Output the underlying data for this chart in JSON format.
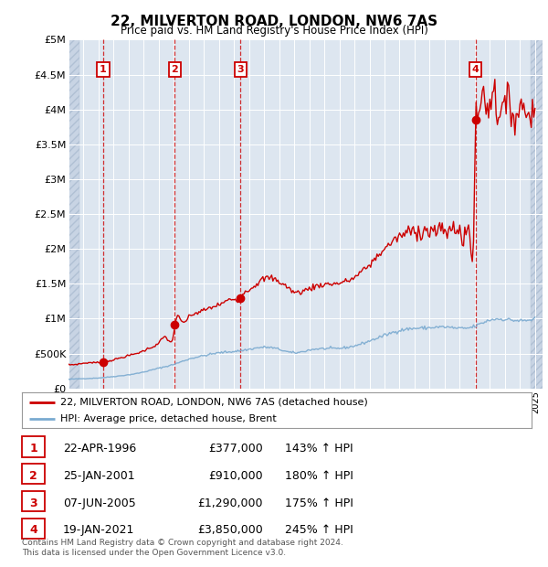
{
  "title": "22, MILVERTON ROAD, LONDON, NW6 7AS",
  "subtitle": "Price paid vs. HM Land Registry's House Price Index (HPI)",
  "ylim": [
    0,
    5000000
  ],
  "yticks": [
    0,
    500000,
    1000000,
    1500000,
    2000000,
    2500000,
    3000000,
    3500000,
    4000000,
    4500000,
    5000000
  ],
  "ytick_labels": [
    "£0",
    "£500K",
    "£1M",
    "£1.5M",
    "£2M",
    "£2.5M",
    "£3M",
    "£3.5M",
    "£4M",
    "£4.5M",
    "£5M"
  ],
  "xlim_start": 1994.0,
  "xlim_end": 2025.5,
  "sale_points": [
    {
      "year": 1996.31,
      "price": 377000,
      "label": "1"
    },
    {
      "year": 2001.07,
      "price": 910000,
      "label": "2"
    },
    {
      "year": 2005.43,
      "price": 1290000,
      "label": "3"
    },
    {
      "year": 2021.05,
      "price": 3850000,
      "label": "4"
    }
  ],
  "table_rows": [
    {
      "num": "1",
      "date": "22-APR-1996",
      "price": "£377,000",
      "pct": "143% ↑ HPI"
    },
    {
      "num": "2",
      "date": "25-JAN-2001",
      "price": "£910,000",
      "pct": "180% ↑ HPI"
    },
    {
      "num": "3",
      "date": "07-JUN-2005",
      "price": "£1,290,000",
      "pct": "175% ↑ HPI"
    },
    {
      "num": "4",
      "date": "19-JAN-2021",
      "price": "£3,850,000",
      "pct": "245% ↑ HPI"
    }
  ],
  "legend_line1": "22, MILVERTON ROAD, LONDON, NW6 7AS (detached house)",
  "legend_line2": "HPI: Average price, detached house, Brent",
  "footnote": "Contains HM Land Registry data © Crown copyright and database right 2024.\nThis data is licensed under the Open Government Licence v3.0.",
  "hpi_color": "#7aaad0",
  "sale_color": "#cc0000",
  "bg_plot": "#dde6f0",
  "grid_color": "#ffffff",
  "vline_color": "#cc0000"
}
